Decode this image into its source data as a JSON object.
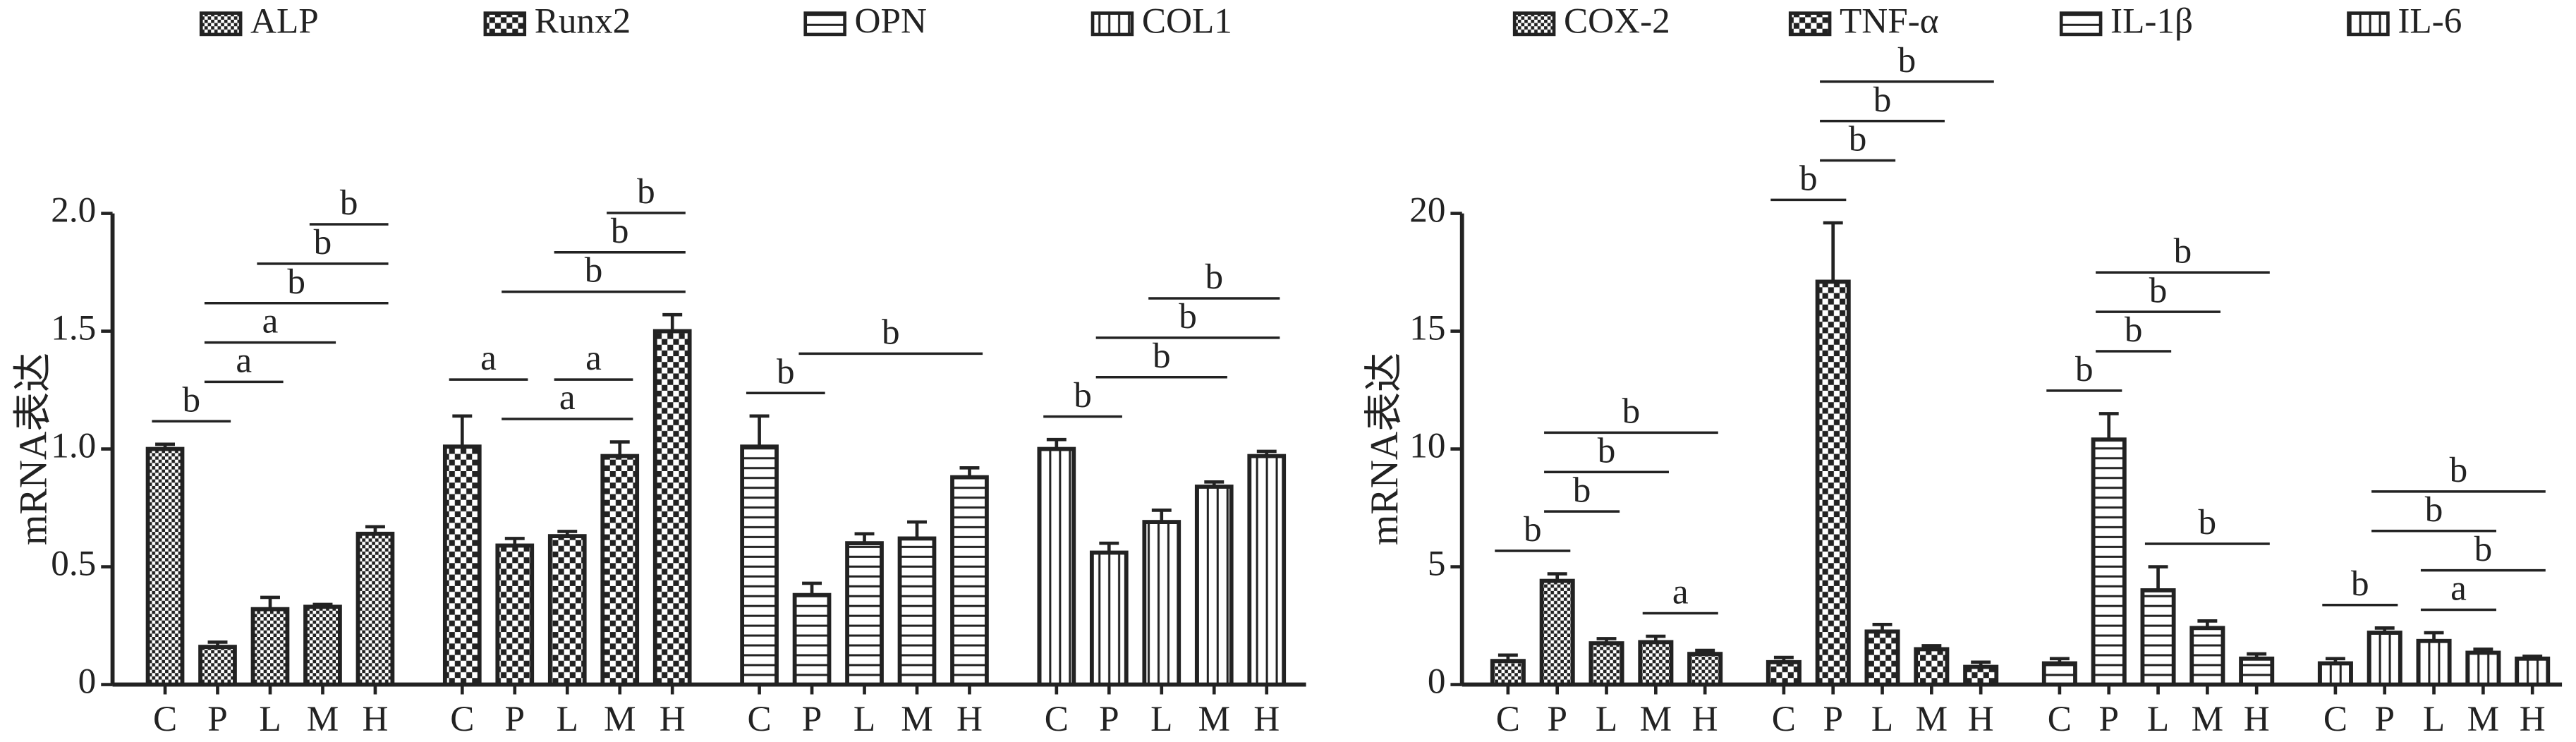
{
  "chart_data": [
    {
      "type": "bar",
      "y_label": "mRNA表达",
      "categories": [
        "C",
        "P",
        "L",
        "M",
        "H"
      ],
      "ylim": [
        0,
        2
      ],
      "yticks": [
        0,
        0.5,
        {
          "value": 1,
          "label": "1.0"
        },
        1.5,
        {
          "value": 2,
          "label": "2.0"
        }
      ],
      "series": [
        {
          "name": "ALP",
          "color": "#222222",
          "pattern": "check-fine",
          "values": [
            1.0,
            0.16,
            0.32,
            0.33,
            0.64
          ],
          "errors": [
            0.02,
            0.02,
            0.05,
            0.01,
            0.03
          ],
          "brackets": [
            {
              "pair": [
                "C",
                "P"
              ],
              "label": "b"
            },
            {
              "pair": [
                "P",
                "L"
              ],
              "label": "a"
            },
            {
              "pair": [
                "P",
                "M"
              ],
              "label": "a"
            },
            {
              "pair": [
                "P",
                "H"
              ],
              "label": "b"
            },
            {
              "pair": [
                "L",
                "H"
              ],
              "label": "b"
            },
            {
              "pair": [
                "M",
                "H"
              ],
              "label": "b"
            }
          ]
        },
        {
          "name": "Runx2",
          "color": "#222222",
          "pattern": "check",
          "values": [
            1.01,
            0.59,
            0.63,
            0.97,
            1.5
          ],
          "errors": [
            0.13,
            0.03,
            0.02,
            0.06,
            0.07
          ],
          "brackets": [
            {
              "pair": [
                "P",
                "M"
              ],
              "label": "a"
            },
            {
              "pair": [
                "C",
                "P"
              ],
              "label": "a"
            },
            {
              "pair": [
                "L",
                "M"
              ],
              "label": "a"
            },
            {
              "pair": [
                "P",
                "H"
              ],
              "label": "b"
            },
            {
              "pair": [
                "L",
                "H"
              ],
              "label": "b"
            },
            {
              "pair": [
                "M",
                "H"
              ],
              "label": "b"
            }
          ]
        },
        {
          "name": "OPN",
          "color": "#222222",
          "pattern": "hstripe",
          "values": [
            1.01,
            0.38,
            0.6,
            0.62,
            0.88
          ],
          "errors": [
            0.13,
            0.05,
            0.04,
            0.07,
            0.04
          ],
          "brackets": [
            {
              "pair": [
                "C",
                "P"
              ],
              "label": "b"
            },
            {
              "pair": [
                "P",
                "H"
              ],
              "label": "b"
            }
          ]
        },
        {
          "name": "COL1",
          "color": "#222222",
          "pattern": "vstripe",
          "values": [
            1.0,
            0.56,
            0.69,
            0.84,
            0.97
          ],
          "errors": [
            0.04,
            0.04,
            0.05,
            0.02,
            0.02
          ],
          "brackets": [
            {
              "pair": [
                "C",
                "P"
              ],
              "label": "b"
            },
            {
              "pair": [
                "P",
                "M"
              ],
              "label": "b"
            },
            {
              "pair": [
                "P",
                "H"
              ],
              "label": "b"
            },
            {
              "pair": [
                "L",
                "H"
              ],
              "label": "b"
            }
          ]
        }
      ]
    },
    {
      "type": "bar",
      "y_label": "mRNA表达",
      "categories": [
        "C",
        "P",
        "L",
        "M",
        "H"
      ],
      "ylim": [
        0,
        20
      ],
      "yticks": [
        0,
        5,
        10,
        15,
        20
      ],
      "series": [
        {
          "name": "COX-2",
          "color": "#222222",
          "pattern": "check-fine",
          "values": [
            1.0,
            4.4,
            1.75,
            1.8,
            1.3
          ],
          "errors": [
            0.25,
            0.3,
            0.2,
            0.25,
            0.15
          ],
          "brackets": [
            {
              "pair": [
                "C",
                "P"
              ],
              "label": "b"
            },
            {
              "pair": [
                "M",
                "H"
              ],
              "label": "a"
            },
            {
              "pair": [
                "P",
                "L"
              ],
              "label": "b"
            },
            {
              "pair": [
                "P",
                "M"
              ],
              "label": "b"
            },
            {
              "pair": [
                "P",
                "H"
              ],
              "label": "b"
            }
          ]
        },
        {
          "name": "TNF-α",
          "color": "#222222",
          "pattern": "check",
          "values": [
            0.95,
            17.1,
            2.25,
            1.5,
            0.75
          ],
          "errors": [
            0.2,
            2.5,
            0.3,
            0.15,
            0.2
          ],
          "brackets": [
            {
              "pair": [
                "C",
                "P"
              ],
              "label": "b"
            },
            {
              "pair": [
                "P",
                "L"
              ],
              "label": "b"
            },
            {
              "pair": [
                "P",
                "M"
              ],
              "label": "b"
            },
            {
              "pair": [
                "P",
                "H"
              ],
              "label": "b"
            }
          ]
        },
        {
          "name": "IL-1β",
          "color": "#222222",
          "pattern": "hstripe",
          "values": [
            0.9,
            10.4,
            4.0,
            2.4,
            1.1
          ],
          "errors": [
            0.2,
            1.1,
            1.0,
            0.3,
            0.2
          ],
          "brackets": [
            {
              "pair": [
                "C",
                "P"
              ],
              "label": "b"
            },
            {
              "pair": [
                "L",
                "H"
              ],
              "label": "b"
            },
            {
              "pair": [
                "P",
                "L"
              ],
              "label": "b"
            },
            {
              "pair": [
                "P",
                "M"
              ],
              "label": "b"
            },
            {
              "pair": [
                "P",
                "H"
              ],
              "label": "b"
            }
          ]
        },
        {
          "name": "IL-6",
          "color": "#222222",
          "pattern": "vstripe",
          "values": [
            0.9,
            2.2,
            1.85,
            1.35,
            1.1
          ],
          "errors": [
            0.2,
            0.2,
            0.35,
            0.15,
            0.1
          ],
          "brackets": [
            {
              "pair": [
                "C",
                "P"
              ],
              "label": "b"
            },
            {
              "pair": [
                "L",
                "M"
              ],
              "label": "a"
            },
            {
              "pair": [
                "L",
                "H"
              ],
              "label": "b"
            },
            {
              "pair": [
                "P",
                "M"
              ],
              "label": "b"
            },
            {
              "pair": [
                "P",
                "H"
              ],
              "label": "b"
            }
          ]
        }
      ]
    }
  ]
}
